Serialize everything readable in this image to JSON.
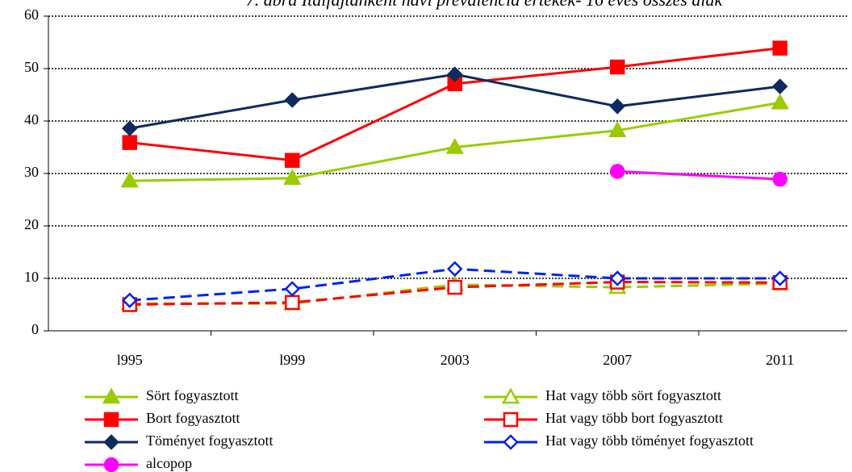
{
  "chart_data": {
    "type": "line",
    "title": "7. ábra Italfajtánként havi prevalencia értékek- 16 éves összes diák",
    "categories": [
      "l995",
      "l999",
      "2003",
      "2007",
      "2011"
    ],
    "ylim": [
      0,
      60
    ],
    "yticks": [
      0,
      10,
      20,
      30,
      40,
      50,
      60
    ],
    "grid": true,
    "series": [
      {
        "name": "Sört fogyasztott",
        "color": "#99cc00",
        "marker": "triangle",
        "filled": true,
        "dashed": false,
        "values": [
          28.6,
          29.1,
          35,
          38.2,
          43.5
        ]
      },
      {
        "name": "Hat vagy több sört fogyasztott",
        "color": "#99cc00",
        "marker": "triangle",
        "filled": false,
        "dashed": true,
        "values": [
          5.2,
          5.2,
          8.8,
          8.3,
          9
        ]
      },
      {
        "name": "Bort fogyasztott",
        "color": "#ff0000",
        "marker": "square",
        "filled": true,
        "dashed": false,
        "values": [
          35.9,
          32.5,
          47.1,
          50.3,
          53.9
        ]
      },
      {
        "name": "Hat vagy több bort fogyasztott",
        "color": "#ff0000",
        "marker": "square",
        "filled": false,
        "dashed": true,
        "values": [
          5.0,
          5.4,
          8.3,
          9.3,
          9.2
        ]
      },
      {
        "name": "Töményet fogyasztott",
        "color": "#0d2b5e",
        "marker": "diamond",
        "filled": true,
        "dashed": false,
        "values": [
          38.6,
          44,
          48.9,
          42.8,
          46.6
        ]
      },
      {
        "name": "Hat vagy több töményet fogyasztott",
        "color": "#0022ee",
        "marker": "diamond",
        "filled": false,
        "dashed": true,
        "values": [
          5.8,
          8,
          11.8,
          10,
          10
        ]
      },
      {
        "name": "alcopop",
        "color": "#ff00ff",
        "marker": "circle",
        "filled": true,
        "dashed": false,
        "values": [
          null,
          null,
          null,
          30.4,
          28.9
        ]
      }
    ]
  }
}
